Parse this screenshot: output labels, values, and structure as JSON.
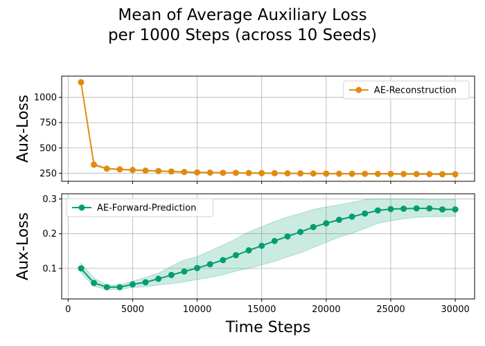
{
  "chart_data": {
    "type": "line",
    "title_line1": "Mean of Average Auxiliary Loss",
    "title_line2": "per 1000 Steps (across 10 Seeds)",
    "xlabel": "Time Steps",
    "xlim": [
      -500,
      31500
    ],
    "xticks": [
      0,
      5000,
      10000,
      15000,
      20000,
      25000,
      30000
    ],
    "grid": true,
    "subplots": [
      {
        "ylabel": "Aux-Loss",
        "ylim": [
          170,
          1210
        ],
        "yticks": [
          250,
          500,
          750,
          1000
        ],
        "legend_position": "top-right",
        "series": [
          {
            "name": "AE-Reconstruction",
            "color": "#e08b0f",
            "x": [
              1000,
              2000,
              3000,
              4000,
              5000,
              6000,
              7000,
              8000,
              9000,
              10000,
              11000,
              12000,
              13000,
              14000,
              15000,
              16000,
              17000,
              18000,
              19000,
              20000,
              21000,
              22000,
              23000,
              24000,
              25000,
              26000,
              27000,
              28000,
              29000,
              30000
            ],
            "y": [
              1150,
              335,
              295,
              288,
              282,
              276,
              272,
              267,
              262,
              258,
              256,
              254,
              253,
              252,
              251,
              250,
              249,
              248,
              247,
              246,
              245,
              244,
              244,
              243,
              243,
              242,
              242,
              241,
              240,
              240
            ],
            "band_low": [
              1145,
              325,
              290,
              283,
              277,
              271,
              267,
              262,
              257,
              253,
              251,
              249,
              248,
              247,
              246,
              245,
              244,
              243,
              242,
              241,
              240,
              239,
              239,
              238,
              238,
              237,
              237,
              236,
              235,
              235
            ],
            "band_high": [
              1155,
              345,
              300,
              293,
              287,
              281,
              277,
              272,
              267,
              263,
              261,
              259,
              258,
              257,
              256,
              255,
              254,
              253,
              252,
              251,
              250,
              249,
              249,
              248,
              248,
              247,
              247,
              246,
              245,
              245
            ]
          }
        ]
      },
      {
        "ylabel": "Aux-Loss",
        "ylim": [
          0.012,
          0.315
        ],
        "yticks": [
          0.1,
          0.2,
          0.3
        ],
        "legend_position": "top-left",
        "series": [
          {
            "name": "AE-Forward-Prediction",
            "color": "#039d73",
            "band_color": "#2eaf86",
            "x": [
              1000,
              2000,
              3000,
              4000,
              5000,
              6000,
              7000,
              8000,
              9000,
              10000,
              11000,
              12000,
              13000,
              14000,
              15000,
              16000,
              17000,
              18000,
              19000,
              20000,
              21000,
              22000,
              23000,
              24000,
              25000,
              26000,
              27000,
              28000,
              29000,
              30000
            ],
            "y": [
              0.1,
              0.058,
              0.046,
              0.046,
              0.054,
              0.06,
              0.07,
              0.081,
              0.091,
              0.101,
              0.112,
              0.124,
              0.138,
              0.152,
              0.165,
              0.179,
              0.192,
              0.205,
              0.219,
              0.23,
              0.24,
              0.249,
              0.258,
              0.267,
              0.271,
              0.272,
              0.273,
              0.273,
              0.27,
              0.27
            ],
            "band_low": [
              0.088,
              0.048,
              0.04,
              0.04,
              0.045,
              0.047,
              0.052,
              0.056,
              0.061,
              0.068,
              0.074,
              0.082,
              0.092,
              0.1,
              0.11,
              0.12,
              0.133,
              0.145,
              0.16,
              0.175,
              0.19,
              0.201,
              0.215,
              0.23,
              0.237,
              0.243,
              0.247,
              0.249,
              0.249,
              0.25
            ],
            "band_high": [
              0.115,
              0.072,
              0.052,
              0.052,
              0.063,
              0.074,
              0.086,
              0.106,
              0.124,
              0.134,
              0.15,
              0.167,
              0.185,
              0.205,
              0.22,
              0.235,
              0.248,
              0.258,
              0.27,
              0.277,
              0.283,
              0.29,
              0.298,
              0.3,
              0.3,
              0.3,
              0.3,
              0.298,
              0.298,
              0.298
            ]
          }
        ]
      }
    ]
  }
}
